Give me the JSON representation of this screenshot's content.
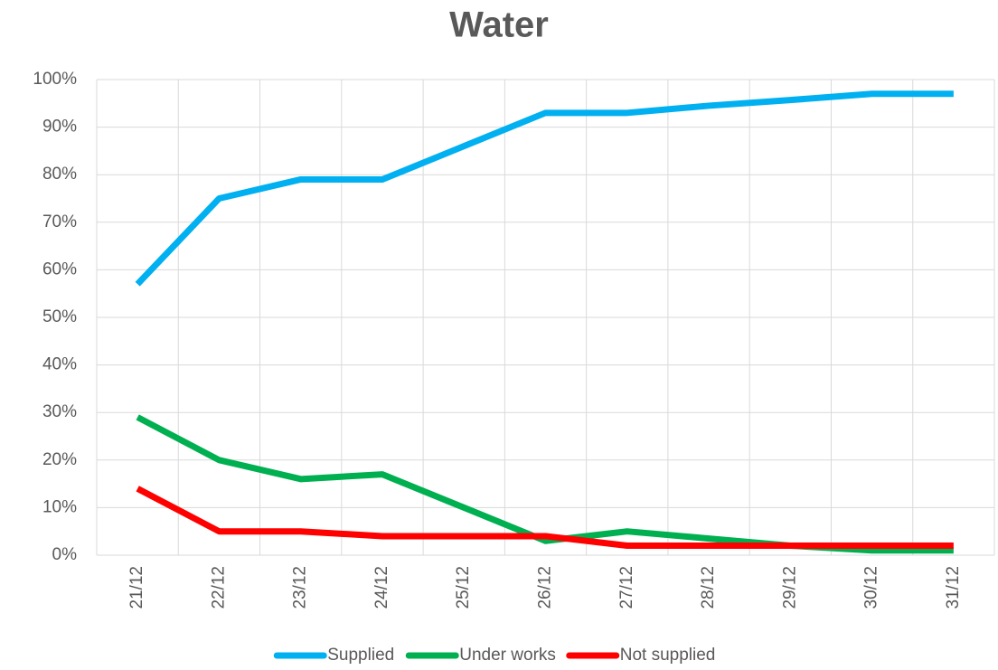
{
  "chart_data": {
    "type": "line",
    "title": "Water",
    "categories": [
      "21/12",
      "22/12",
      "23/12",
      "24/12",
      "25/12",
      "26/12",
      "27/12",
      "28/12",
      "29/12",
      "30/12",
      "31/12"
    ],
    "series": [
      {
        "name": "Supplied",
        "color": "#00b0f0",
        "values": [
          57,
          75,
          79,
          79,
          86,
          93,
          93,
          94.5,
          95.7,
          97,
          97
        ]
      },
      {
        "name": "Under works",
        "color": "#00b050",
        "values": [
          29,
          20,
          16,
          17,
          10,
          3,
          5,
          3.5,
          2,
          1,
          1
        ]
      },
      {
        "name": "Not supplied",
        "color": "#ff0000",
        "values": [
          14,
          5,
          5,
          4,
          4,
          4,
          2,
          2,
          2,
          2,
          2
        ]
      }
    ],
    "ylim": [
      0,
      100
    ],
    "yticks": [
      {
        "value": 0,
        "label": "0%"
      },
      {
        "value": 10,
        "label": "10%"
      },
      {
        "value": 20,
        "label": "20%"
      },
      {
        "value": 30,
        "label": "30%"
      },
      {
        "value": 40,
        "label": "40%"
      },
      {
        "value": 50,
        "label": "50%"
      },
      {
        "value": 60,
        "label": "60%"
      },
      {
        "value": 70,
        "label": "70%"
      },
      {
        "value": 80,
        "label": "80%"
      },
      {
        "value": 90,
        "label": "90%"
      },
      {
        "value": 100,
        "label": "100%"
      }
    ],
    "grid": true,
    "legend": "bottom"
  }
}
